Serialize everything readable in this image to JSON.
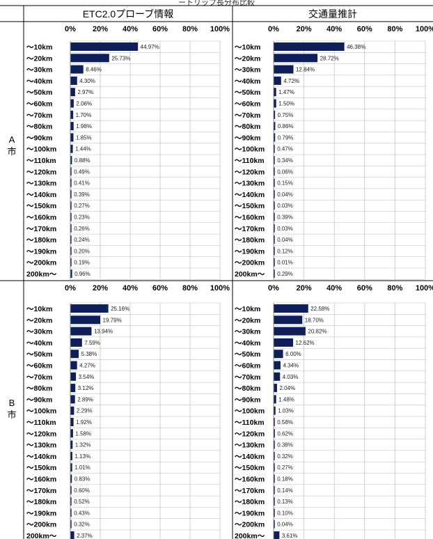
{
  "title_cut": "ートリップ長分布比較",
  "columns": [
    "ETC2.0プローブ情報",
    "交通量推計"
  ],
  "rows": [
    {
      "label_lines": [
        "A",
        "市"
      ]
    },
    {
      "label_lines": [
        "B",
        "市"
      ]
    }
  ],
  "chart_data": [
    {
      "type": "bar",
      "orientation": "horizontal",
      "city": "A市",
      "column": "ETC2.0プローブ情報",
      "x_ticks": [
        "0%",
        "20%",
        "40%",
        "60%",
        "80%",
        "100%"
      ],
      "xlim": [
        0,
        100
      ],
      "grid": true,
      "categories": [
        "～10km",
        "～20km",
        "～30km",
        "～40km",
        "～50km",
        "～60km",
        "～70km",
        "～80km",
        "～90km",
        "～100km",
        "～110km",
        "～120km",
        "～130km",
        "～140km",
        "～150km",
        "～160km",
        "～170km",
        "～180km",
        "～190km",
        "～200km",
        "200km～"
      ],
      "values": [
        44.97,
        25.73,
        8.46,
        4.3,
        2.97,
        2.06,
        1.7,
        1.98,
        1.85,
        1.44,
        0.88,
        0.49,
        0.41,
        0.39,
        0.27,
        0.23,
        0.26,
        0.24,
        0.2,
        0.19,
        0.96
      ],
      "labels": [
        "44.97%",
        "25.73%",
        "8.46%",
        "4.30%",
        "2.97%",
        "2.06%",
        "1.70%",
        "1.98%",
        "1.85%",
        "1.44%",
        "0.88%",
        "0.49%",
        "0.41%",
        "0.39%",
        "0.27%",
        "0.23%",
        "0.26%",
        "0.24%",
        "0.20%",
        "0.19%",
        "0.96%"
      ]
    },
    {
      "type": "bar",
      "orientation": "horizontal",
      "city": "A市",
      "column": "交通量推計",
      "x_ticks": [
        "0%",
        "20%",
        "40%",
        "60%",
        "80%",
        "100%"
      ],
      "xlim": [
        0,
        100
      ],
      "grid": true,
      "categories": [
        "～10km",
        "～20km",
        "～30km",
        "～40km",
        "～50km",
        "～60km",
        "～70km",
        "～80km",
        "～90km",
        "～100km",
        "～110km",
        "～120km",
        "～130km",
        "～140km",
        "～150km",
        "～160km",
        "～170km",
        "～180km",
        "～190km",
        "～200km",
        "200km～"
      ],
      "values": [
        46.38,
        28.72,
        12.84,
        4.72,
        1.47,
        1.5,
        0.75,
        0.86,
        0.79,
        0.47,
        0.34,
        0.06,
        0.15,
        0.04,
        0.03,
        0.39,
        0.03,
        0.04,
        0.12,
        0.01,
        0.29
      ],
      "labels": [
        "46.38%",
        "28.72%",
        "12.84%",
        "4.72%",
        "1.47%",
        "1.50%",
        "0.75%",
        "0.86%",
        "0.79%",
        "0.47%",
        "0.34%",
        "0.06%",
        "0.15%",
        "0.04%",
        "0.03%",
        "0.39%",
        "0.03%",
        "0.04%",
        "0.12%",
        "0.01%",
        "0.29%"
      ]
    },
    {
      "type": "bar",
      "orientation": "horizontal",
      "city": "B市",
      "column": "ETC2.0プローブ情報",
      "x_ticks": [
        "0%",
        "20%",
        "40%",
        "60%",
        "80%",
        "100%"
      ],
      "xlim": [
        0,
        100
      ],
      "grid": true,
      "categories": [
        "～10km",
        "～20km",
        "～30km",
        "～40km",
        "～50km",
        "～60km",
        "～70km",
        "～80km",
        "～90km",
        "～100km",
        "～110km",
        "～120km",
        "～130km",
        "～140km",
        "～150km",
        "～160km",
        "～170km",
        "～180km",
        "～190km",
        "～200km",
        "200km～"
      ],
      "values": [
        25.16,
        19.79,
        13.94,
        7.59,
        5.38,
        4.27,
        3.54,
        3.12,
        2.89,
        2.29,
        1.92,
        1.58,
        1.32,
        1.13,
        1.01,
        0.83,
        0.6,
        0.52,
        0.43,
        0.32,
        2.37
      ],
      "labels": [
        "25.16%",
        "19.79%",
        "13.94%",
        "7.59%",
        "5.38%",
        "4.27%",
        "3.54%",
        "3.12%",
        "2.89%",
        "2.29%",
        "1.92%",
        "1.58%",
        "1.32%",
        "1.13%",
        "1.01%",
        "0.83%",
        "0.60%",
        "0.52%",
        "0.43%",
        "0.32%",
        "2.37%"
      ]
    },
    {
      "type": "bar",
      "orientation": "horizontal",
      "city": "B市",
      "column": "交通量推計",
      "x_ticks": [
        "0%",
        "20%",
        "40%",
        "60%",
        "80%",
        "100%"
      ],
      "xlim": [
        0,
        100
      ],
      "grid": true,
      "categories": [
        "～10km",
        "～20km",
        "～30km",
        "～40km",
        "～50km",
        "～60km",
        "～70km",
        "～80km",
        "～90km",
        "～100km",
        "～110km",
        "～120km",
        "～130km",
        "～140km",
        "～150km",
        "～160km",
        "～170km",
        "～180km",
        "～190km",
        "～200km",
        "200km～"
      ],
      "values": [
        22.58,
        18.7,
        20.82,
        12.62,
        6.0,
        4.34,
        4.03,
        2.04,
        1.48,
        1.03,
        0.58,
        0.62,
        0.38,
        0.32,
        0.27,
        0.18,
        0.14,
        0.13,
        0.1,
        0.04,
        3.61
      ],
      "labels": [
        "22.58%",
        "18.70%",
        "20.82%",
        "12.62%",
        "6.00%",
        "4.34%",
        "4.03%",
        "2.04%",
        "1.48%",
        "1.03%",
        "0.58%",
        "0.62%",
        "0.38%",
        "0.32%",
        "0.27%",
        "0.18%",
        "0.14%",
        "0.13%",
        "0.10%",
        "0.04%",
        "3.61%"
      ]
    }
  ],
  "colors": {
    "bar": "#0f1f5a",
    "grid": "#bbbbbb",
    "border": "#000000"
  }
}
